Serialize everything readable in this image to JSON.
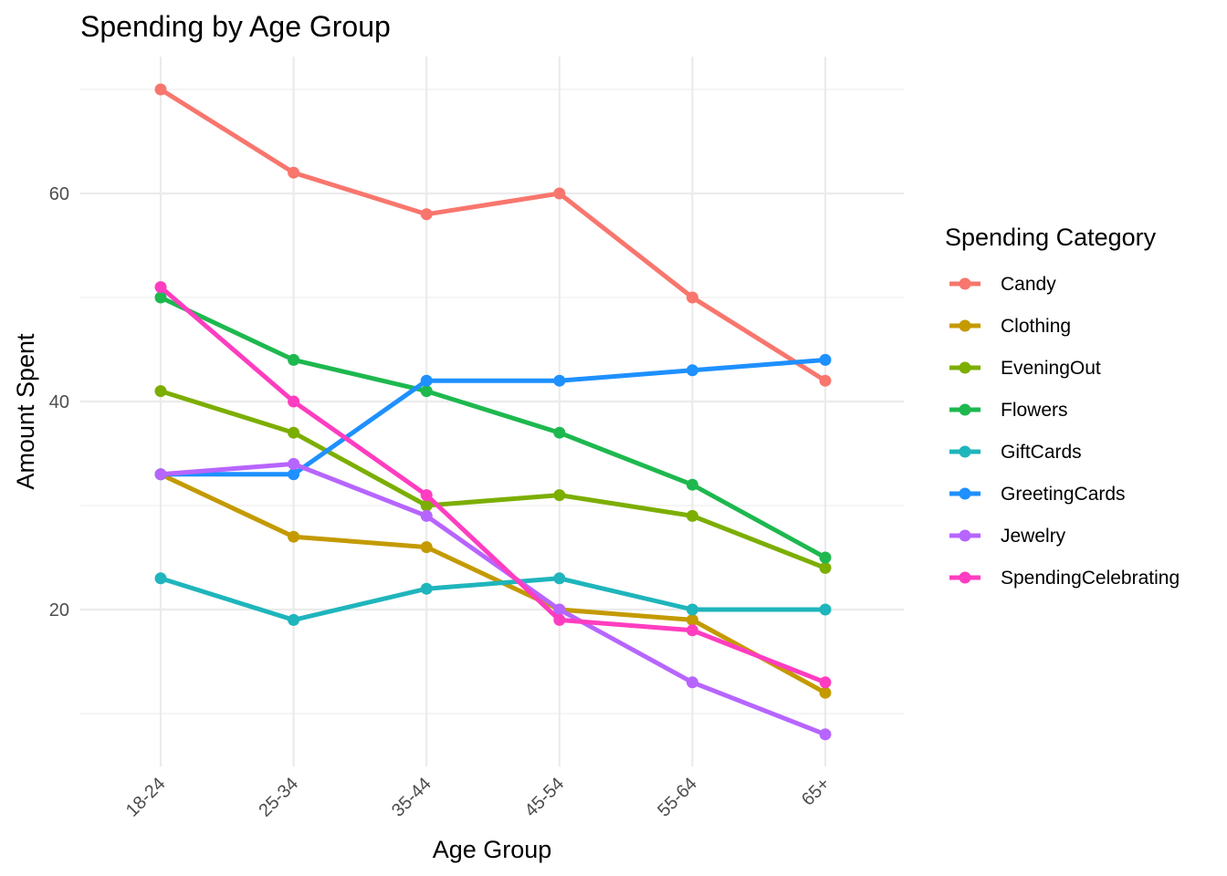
{
  "chart_data": {
    "type": "line",
    "title": "Spending by Age Group",
    "xlabel": "Age Group",
    "ylabel": "Amount Spent",
    "categories": [
      "18-24",
      "25-34",
      "35-44",
      "45-54",
      "55-64",
      "65+"
    ],
    "yticks": [
      20,
      40,
      60
    ],
    "ylim": [
      5,
      73
    ],
    "grid": true,
    "legend": {
      "title": "Spending Category",
      "position": "right"
    },
    "series": [
      {
        "name": "Candy",
        "color": "#F8766D",
        "values": [
          70,
          62,
          58,
          60,
          50,
          42
        ]
      },
      {
        "name": "Clothing",
        "color": "#C49A00",
        "values": [
          33,
          27,
          26,
          20,
          19,
          12
        ]
      },
      {
        "name": "EveningOut",
        "color": "#7CAE00",
        "values": [
          41,
          37,
          30,
          31,
          29,
          24
        ]
      },
      {
        "name": "Flowers",
        "color": "#1EB84F",
        "values": [
          50,
          44,
          41,
          37,
          32,
          25
        ]
      },
      {
        "name": "GiftCards",
        "color": "#1FB5BC",
        "values": [
          23,
          19,
          22,
          23,
          20,
          20
        ]
      },
      {
        "name": "GreetingCards",
        "color": "#1E90FF",
        "values": [
          33,
          33,
          42,
          42,
          43,
          44
        ]
      },
      {
        "name": "Jewelry",
        "color": "#B765FF",
        "values": [
          33,
          34,
          29,
          20,
          13,
          8
        ]
      },
      {
        "name": "SpendingCelebrating",
        "color": "#FF3DC0",
        "values": [
          51,
          40,
          31,
          19,
          18,
          13
        ]
      }
    ]
  }
}
